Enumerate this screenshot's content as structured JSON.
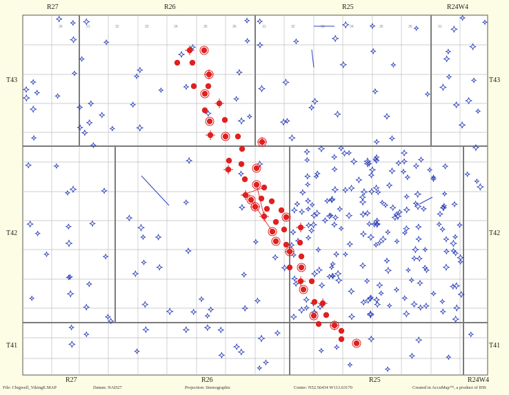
{
  "map": {
    "range_labels_top": [
      "R27",
      "R26",
      "R25",
      "R24W4"
    ],
    "range_labels_bottom": [
      "R27",
      "R26",
      "R25",
      "R24W4"
    ],
    "township_labels_left": [
      "T43",
      "T42",
      "T41"
    ],
    "township_labels_right": [
      "T43",
      "T42",
      "T41"
    ],
    "colors": {
      "background": "#fdfce4",
      "map_area": "#ffffff",
      "grid": "#bdbdbd",
      "township_line": "#7a7a7a",
      "well_symbol": "#2a3fb8",
      "highlight_well": "#e02020"
    },
    "symbols": {
      "regular": "blue dry-hole / gas / oil well symbols",
      "highlighted": "red wells along NW–SE trend"
    }
  },
  "footer": {
    "file": "File: Chigwell_VikingE.MAP",
    "datum": "Datum: NAD27",
    "projection": "Projection: Stereographic",
    "center": "Center: N52.56434  W113.63170",
    "credit": "Created in AccuMap™, a product of IHS"
  }
}
